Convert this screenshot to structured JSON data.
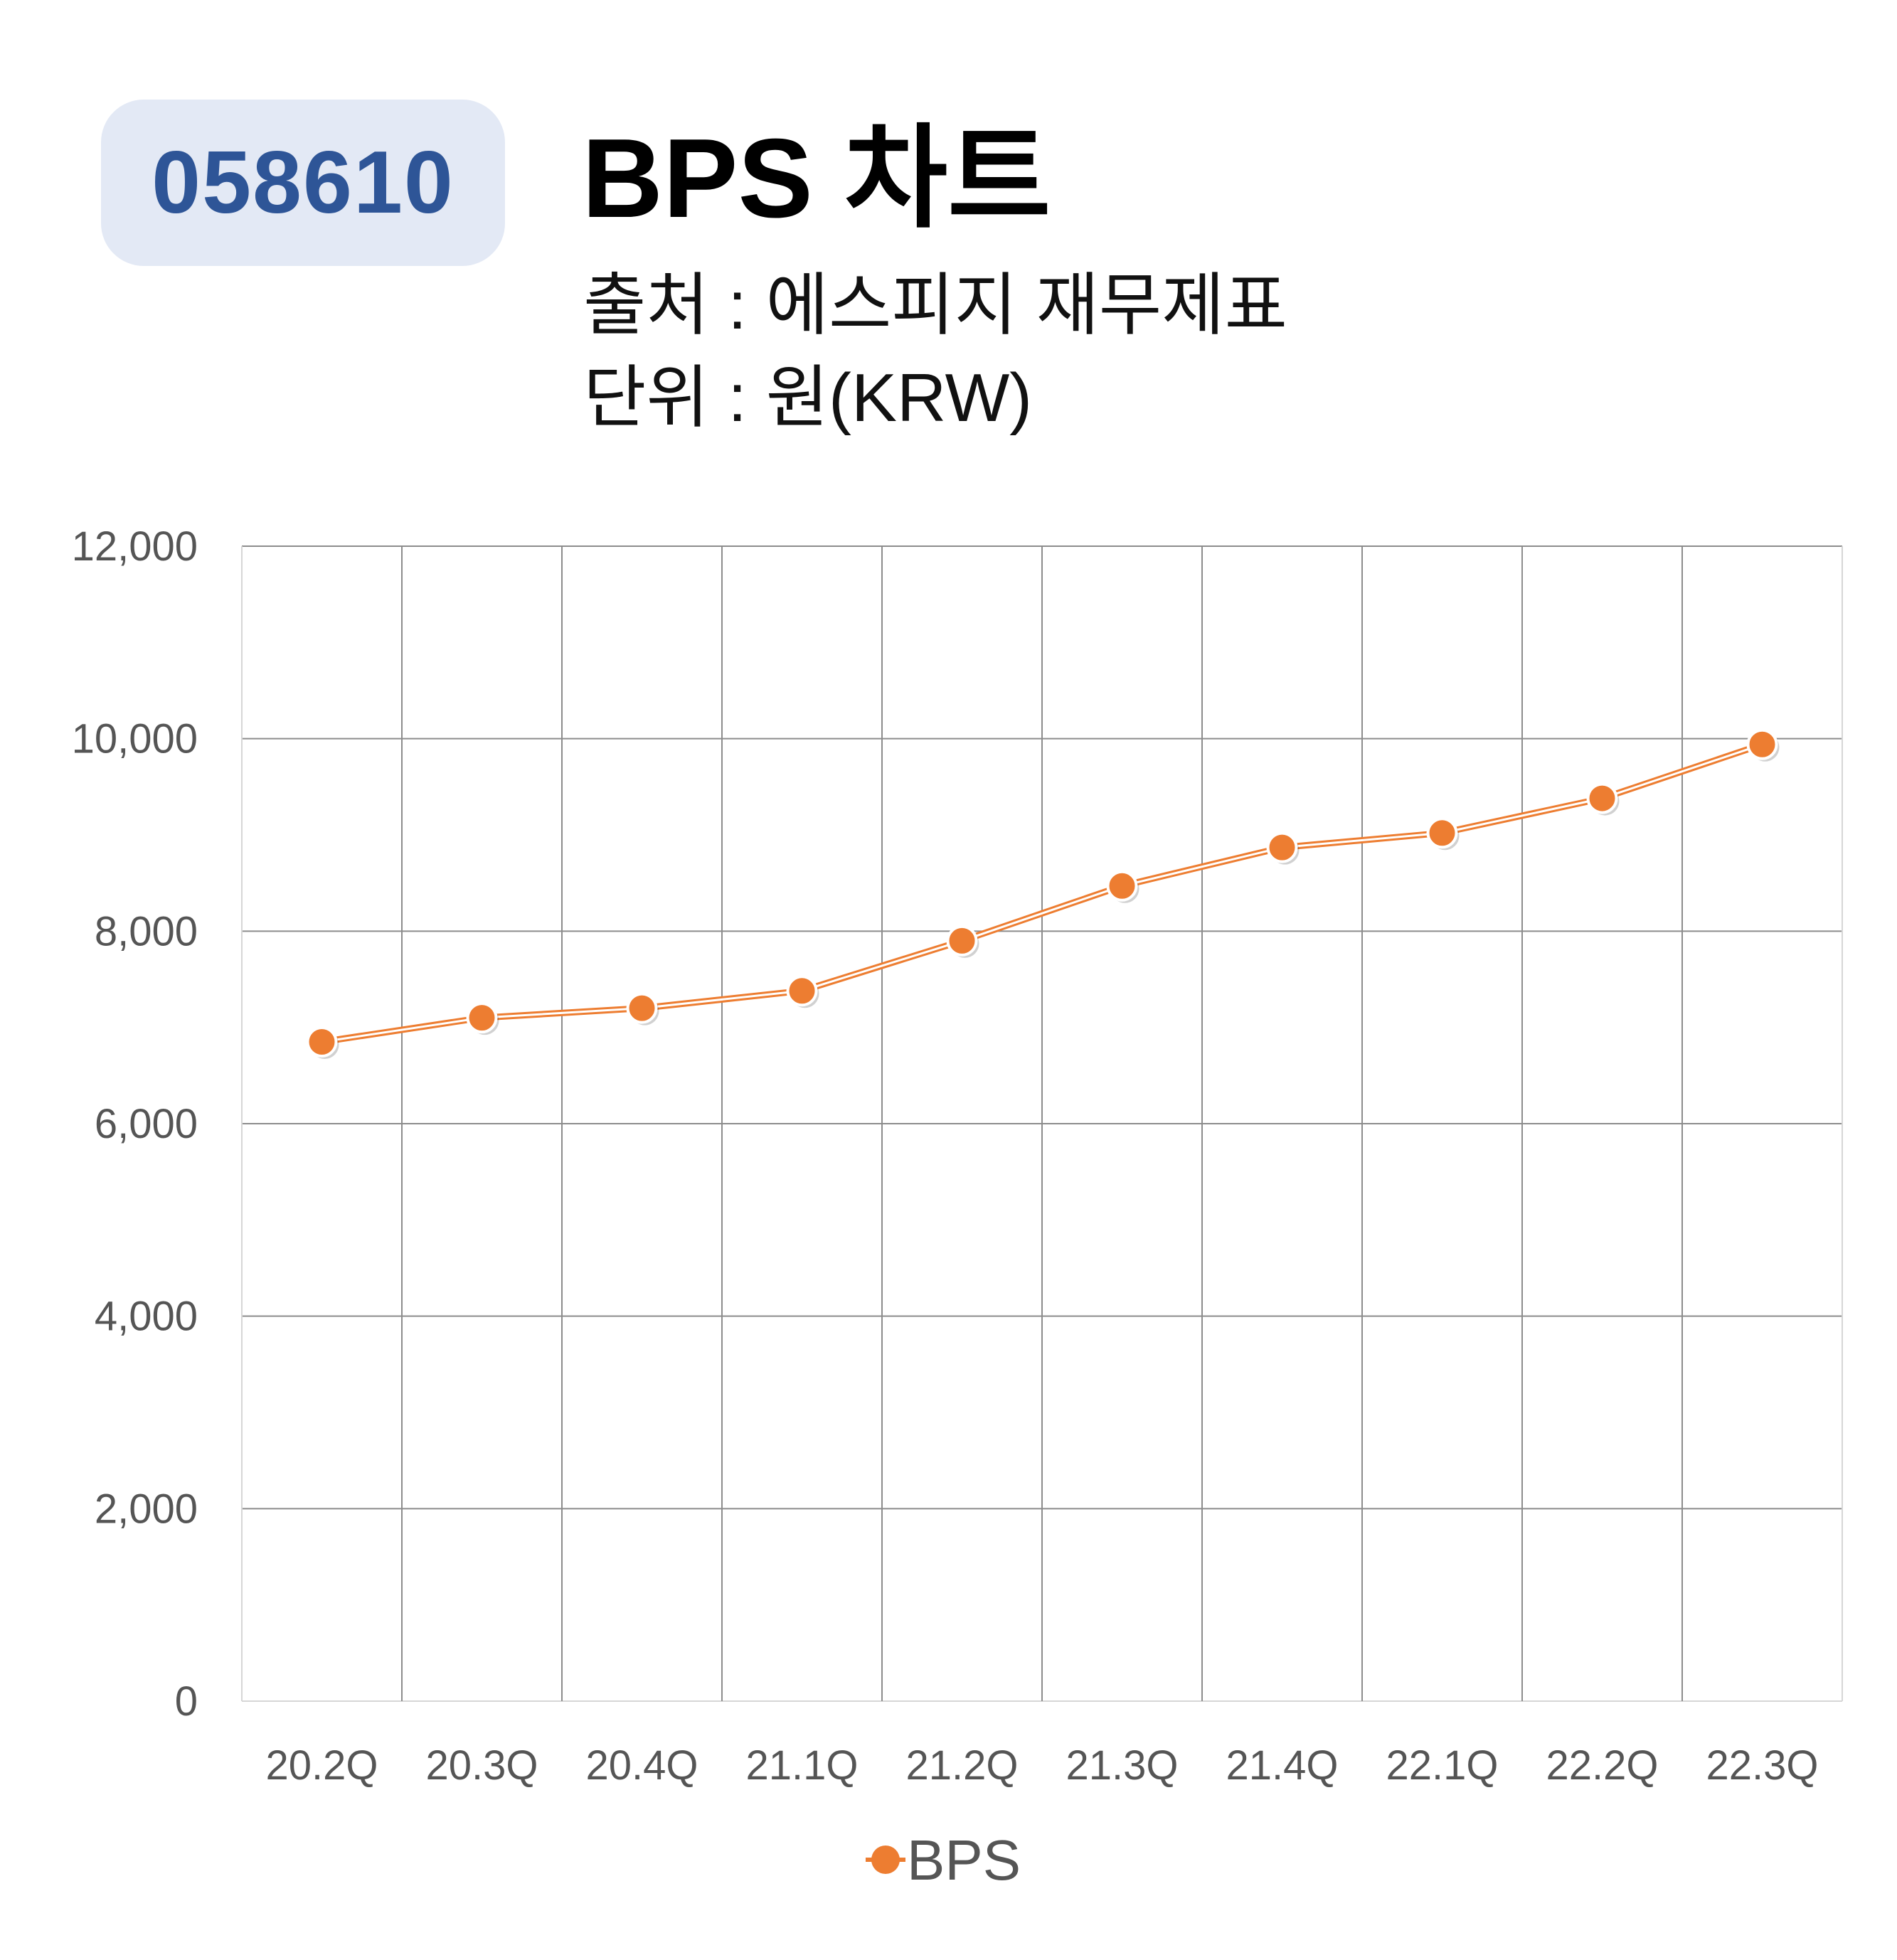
{
  "header": {
    "ticker": "058610",
    "title": "BPS 차트",
    "source": "출처 : 에스피지 재무제표",
    "unit": "단위 : 원(KRW)"
  },
  "colors": {
    "badge_bg": "#e3e9f5",
    "badge_text": "#2e5597",
    "series": "#ed7d31",
    "grid": "#8c8c8c"
  },
  "chart_data": {
    "type": "line",
    "categories": [
      "20.2Q",
      "20.3Q",
      "20.4Q",
      "21.1Q",
      "21.2Q",
      "21.3Q",
      "21.4Q",
      "22.1Q",
      "22.2Q",
      "22.3Q"
    ],
    "series": [
      {
        "name": "BPS",
        "values": [
          6850,
          7100,
          7200,
          7380,
          7900,
          8470,
          8870,
          9020,
          9380,
          9940
        ]
      }
    ],
    "ylim": [
      0,
      12000
    ],
    "yticks": [
      "0",
      "2,000",
      "4,000",
      "6,000",
      "8,000",
      "10,000",
      "12,000"
    ],
    "grid": true,
    "legend_position": "bottom",
    "marker": "circle"
  }
}
